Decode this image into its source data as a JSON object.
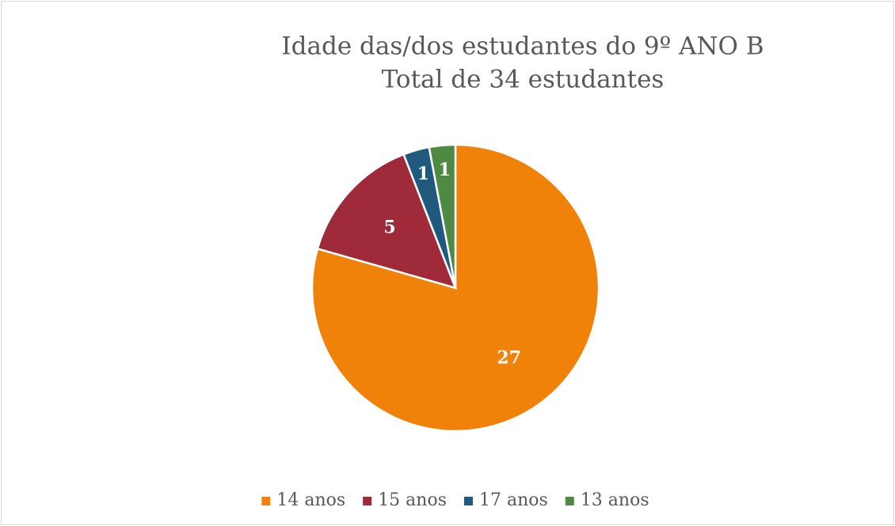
{
  "chart_data": {
    "type": "pie",
    "title": "Idade das/dos estudantes do 9º ANO B",
    "subtitle": "Total de 34 estudantes",
    "categories": [
      "14 anos",
      "15 anos",
      "17 anos",
      "13 anos"
    ],
    "values": [
      27,
      5,
      1,
      1
    ],
    "colors": [
      "#f0820a",
      "#9e2a3a",
      "#1f5a7e",
      "#4e8a44"
    ],
    "legend": "bottom"
  }
}
